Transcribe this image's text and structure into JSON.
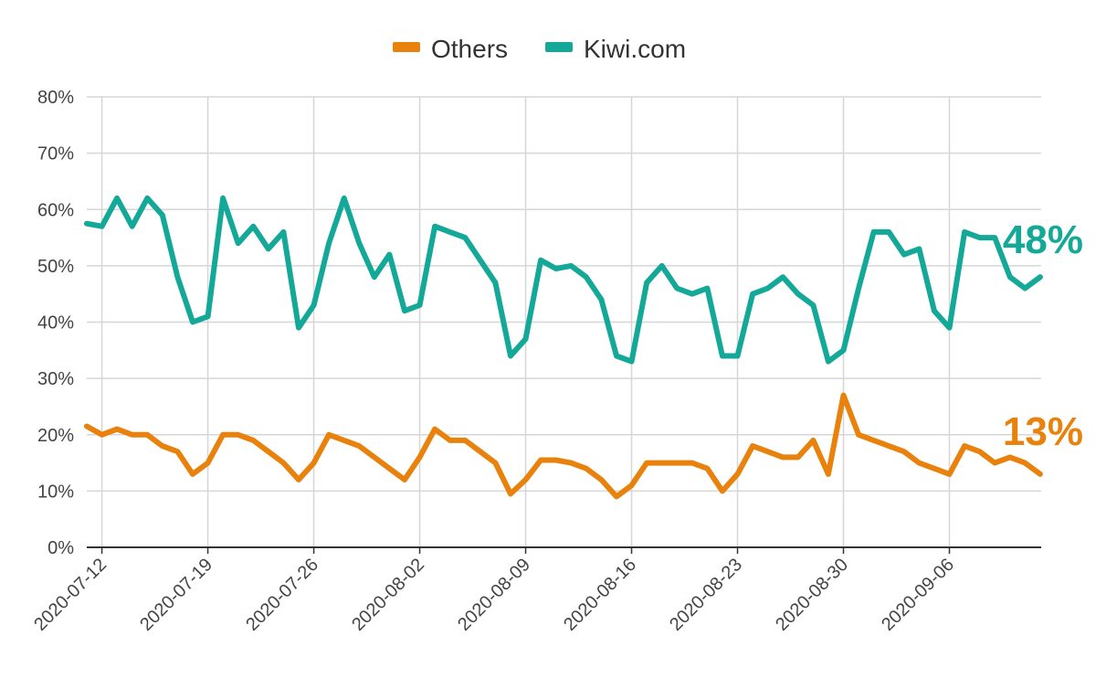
{
  "chart_data": {
    "type": "line",
    "title": "",
    "xlabel": "",
    "ylabel": "",
    "ylim": [
      0,
      80
    ],
    "y_ticks": [
      "0%",
      "10%",
      "20%",
      "30%",
      "40%",
      "50%",
      "60%",
      "70%",
      "80%"
    ],
    "y_tick_values": [
      0,
      10,
      20,
      30,
      40,
      50,
      60,
      70,
      80
    ],
    "x_start": "2020-07-11",
    "x_ticks": [
      "2020-07-12",
      "2020-07-19",
      "2020-07-26",
      "2020-08-02",
      "2020-08-09",
      "2020-08-16",
      "2020-08-23",
      "2020-08-30",
      "2020-09-06"
    ],
    "grid": true,
    "legend_position": "top",
    "series": [
      {
        "name": "Others",
        "color": "#E8820C",
        "end_label": "13%",
        "values": [
          21.5,
          20,
          21,
          20,
          20,
          18,
          17,
          13,
          15,
          20,
          20,
          19,
          17,
          15,
          12,
          15,
          20,
          19,
          18,
          16,
          14,
          12,
          16,
          21,
          19,
          19,
          17,
          15,
          9.5,
          12,
          15.5,
          15.5,
          15,
          14,
          12,
          9,
          11,
          15,
          15,
          15,
          15,
          14,
          10,
          13,
          18,
          17,
          16,
          16,
          19,
          13,
          27,
          20,
          19,
          18,
          17,
          15,
          14,
          13,
          18,
          17,
          15,
          16,
          15,
          13
        ]
      },
      {
        "name": "Kiwi.com",
        "color": "#13A898",
        "end_label": "48%",
        "values": [
          57.5,
          57,
          62,
          57,
          62,
          59,
          48,
          40,
          41,
          62,
          54,
          57,
          53,
          56,
          39,
          43,
          54,
          62,
          54,
          48,
          52,
          42,
          43,
          57,
          56,
          55,
          51,
          47,
          34,
          37,
          51,
          49.5,
          50,
          48,
          44,
          34,
          33,
          47,
          50,
          46,
          45,
          46,
          34,
          34,
          45,
          46,
          48,
          45,
          43,
          33,
          35,
          46,
          56,
          56,
          52,
          53,
          42,
          39,
          56,
          55,
          55,
          48,
          46,
          48
        ]
      }
    ]
  }
}
